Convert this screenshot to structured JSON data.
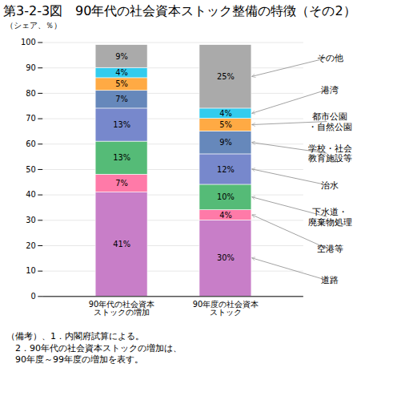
{
  "chart_data": {
    "type": "bar",
    "stacked": true,
    "title": "第3-2-3図　90年代の社会資本ストック整備の特徴（その2）",
    "ylabel": "（シェア、％）",
    "categories": [
      "90年代の社会資本\nストックの増加",
      "90年度の社会資本\nストック"
    ],
    "series": [
      {
        "name": "道路",
        "color": "#C87EC8",
        "values": [
          41,
          30
        ],
        "value_labels": [
          "41%",
          "30%"
        ]
      },
      {
        "name": "空港等",
        "color": "#FF7AA8",
        "values": [
          7,
          4
        ],
        "value_labels": [
          "7%",
          "4%"
        ]
      },
      {
        "name": "下水道・\n廃棄物処理",
        "color": "#55BB77",
        "values": [
          13,
          10
        ],
        "value_labels": [
          "13%",
          "10%"
        ]
      },
      {
        "name": "治水",
        "color": "#7788CC",
        "values": [
          13,
          12
        ],
        "value_labels": [
          "13%",
          "12%"
        ]
      },
      {
        "name": "学校・社会\n教育施設等",
        "color": "#6688BB",
        "values": [
          7,
          9
        ],
        "value_labels": [
          "7%",
          "9%"
        ]
      },
      {
        "name": "都市公園\n・自然公園",
        "color": "#FFAA44",
        "values": [
          5,
          5
        ],
        "value_labels": [
          "5%",
          "5%"
        ]
      },
      {
        "name": "港湾",
        "color": "#33CCEE",
        "values": [
          4,
          4
        ],
        "value_labels": [
          "4%",
          "4%"
        ]
      },
      {
        "name": "その他",
        "color": "#AAAAAA",
        "values": [
          9,
          25
        ],
        "value_labels": [
          "9%",
          "25%"
        ]
      }
    ],
    "annotations": [
      "（備考）、1．内閣府試算による。",
      "　2．90年代の社会資本ストックの増加は、",
      "　90年度～99年度の増加を表す。"
    ],
    "ylim": [
      0,
      100
    ],
    "yticks": [
      0,
      10,
      20,
      30,
      40,
      50,
      60,
      70,
      80,
      90,
      100
    ],
    "grid": true,
    "data_labels": true
  }
}
